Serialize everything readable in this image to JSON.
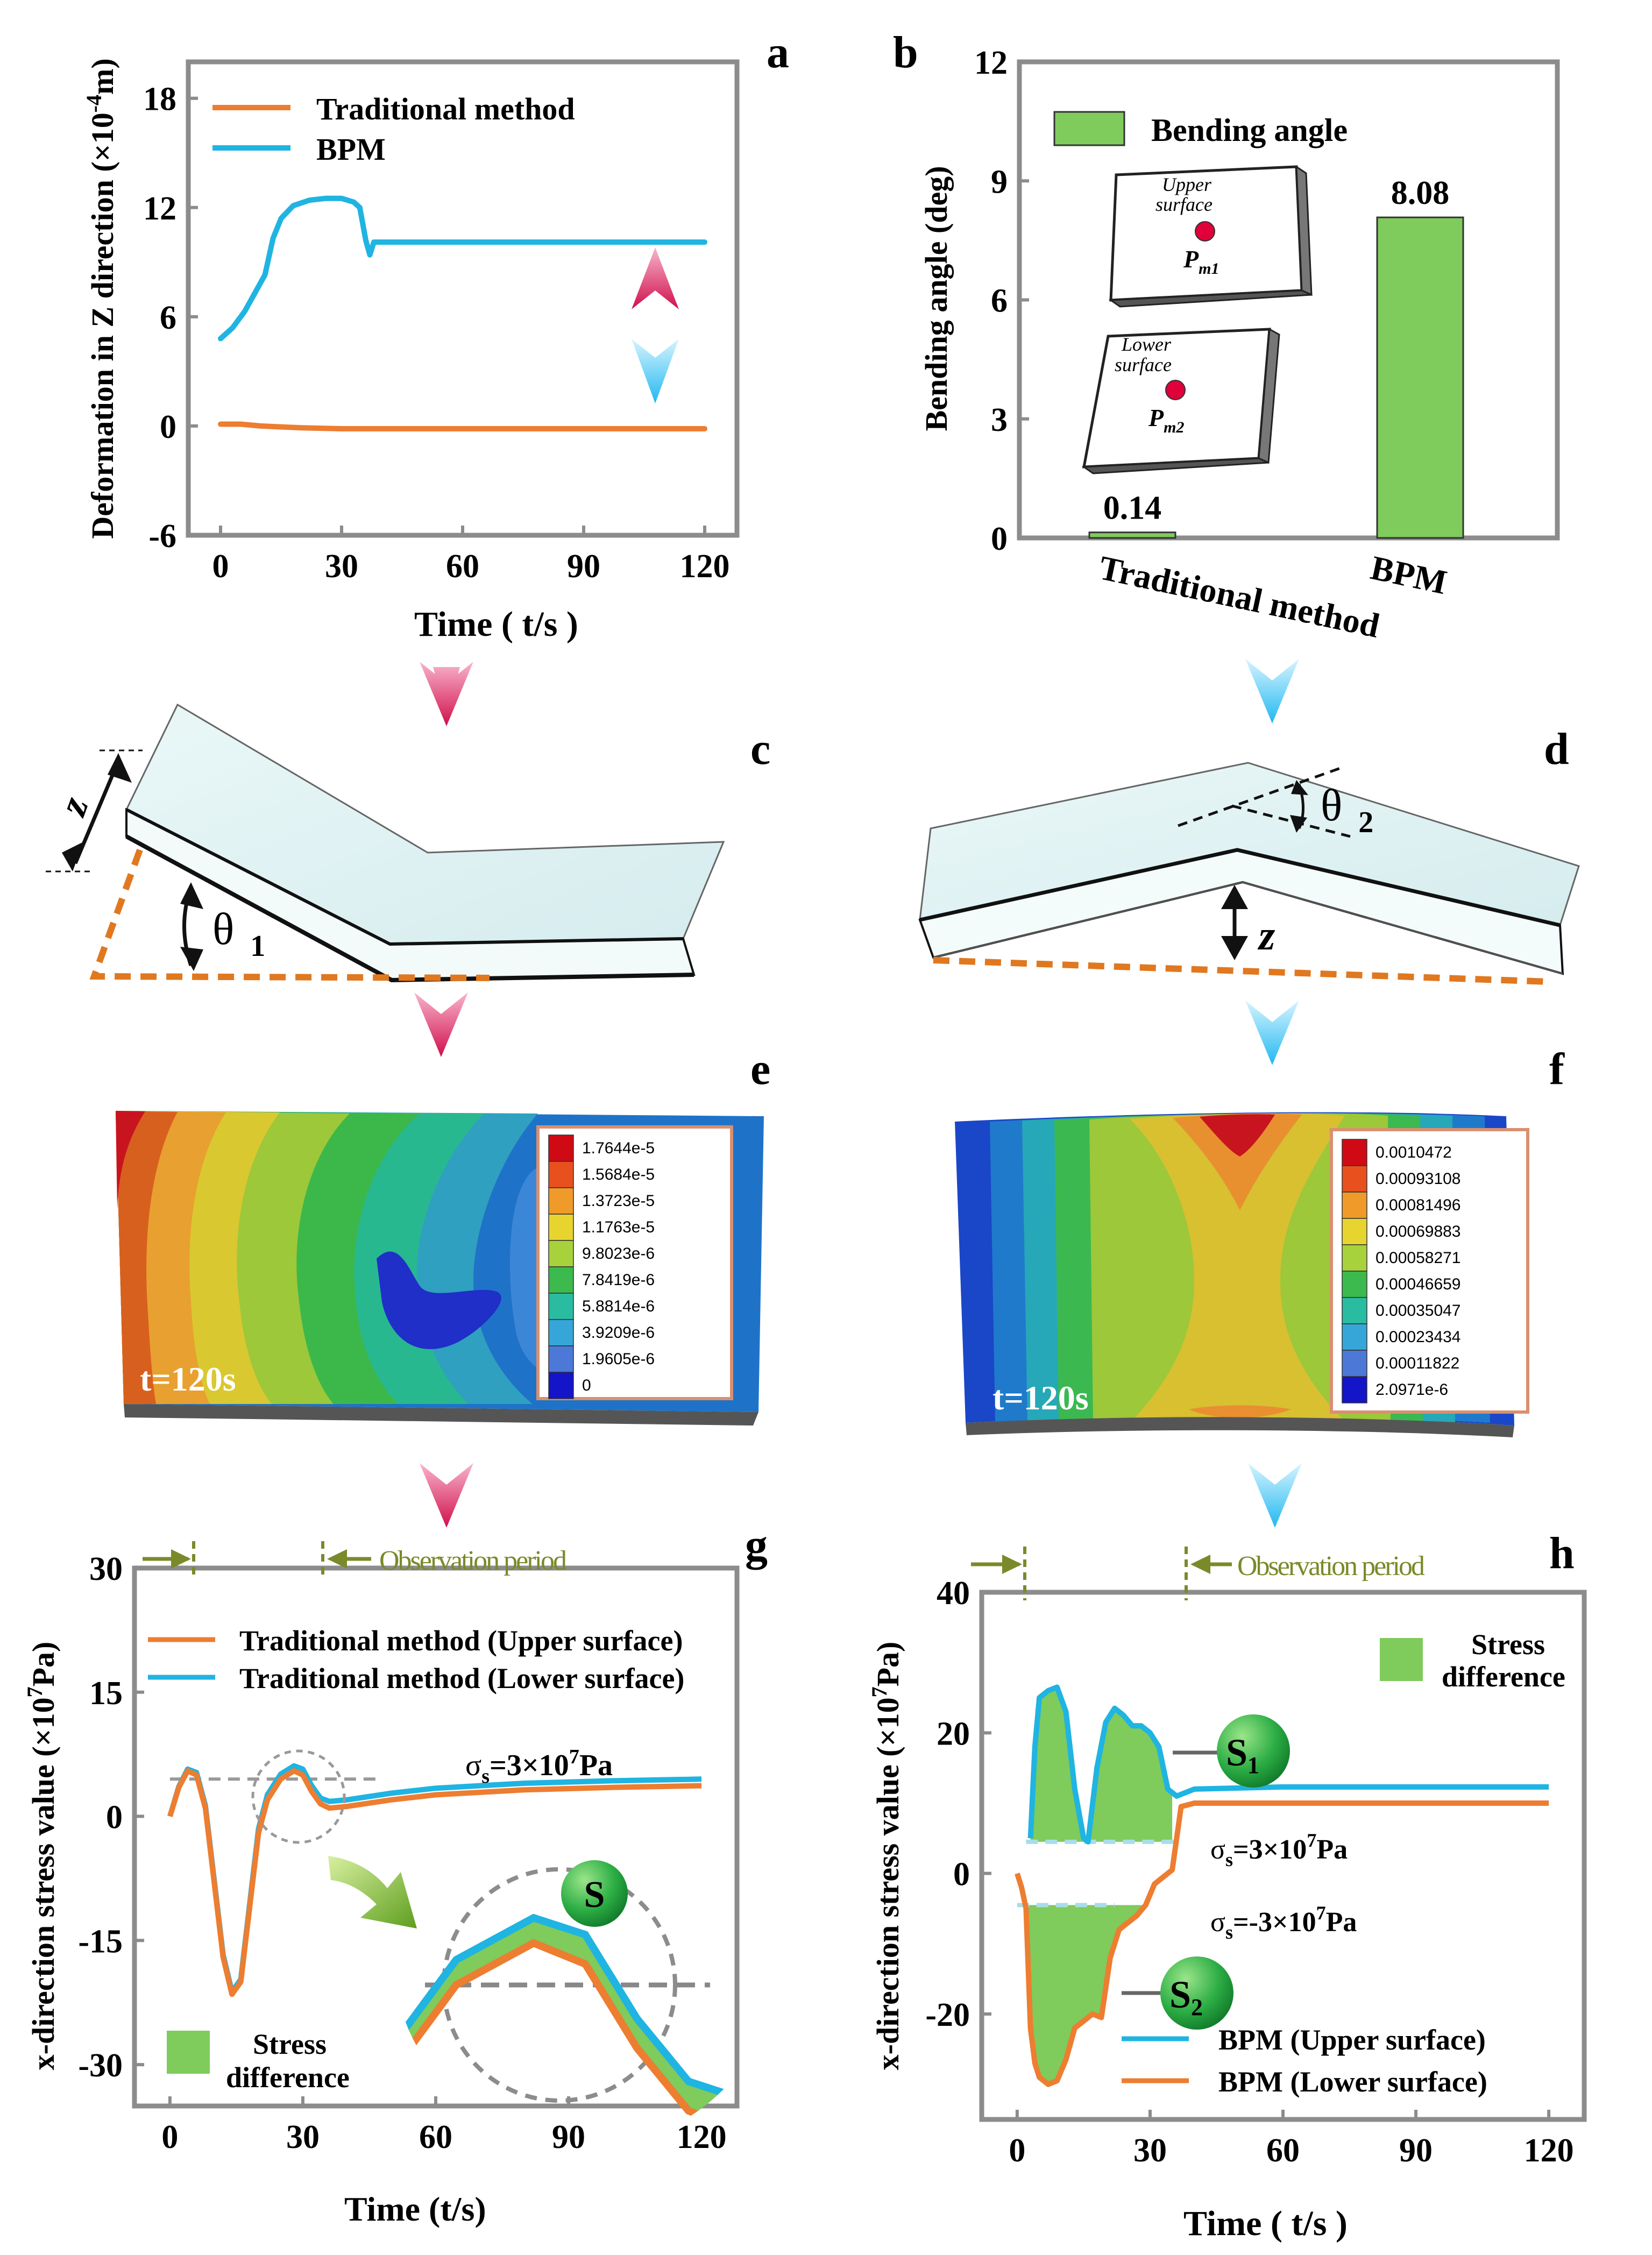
{
  "colors": {
    "orange": "#ED7D31",
    "blue": "#1FB4E2",
    "green": "#7FCB5B",
    "axis": "#8C8C8C",
    "olive": "#7A8A2A",
    "red_marker": "#E0003A",
    "pink_arrow": "#E0306A",
    "cyan_arrow": "#22B8F0"
  },
  "panels": {
    "a": {
      "letter": "a"
    },
    "b": {
      "letter": "b"
    },
    "c": {
      "letter": "c",
      "z_label": "z",
      "theta_label": "θ",
      "theta_sub": "1"
    },
    "d": {
      "letter": "d",
      "z_label": "z",
      "theta_label": "θ",
      "theta_sub": "2"
    },
    "e": {
      "letter": "e",
      "time_label": "t=120s",
      "legend": [
        "1.7644e-5",
        "1.5684e-5",
        "1.3723e-5",
        "1.1763e-5",
        "9.8023e-6",
        "7.8419e-6",
        "5.8814e-6",
        "3.9209e-6",
        "1.9605e-6",
        "0"
      ]
    },
    "f": {
      "letter": "f",
      "time_label": "t=120s",
      "legend": [
        "0.0010472",
        "0.00093108",
        "0.00081496",
        "0.00069883",
        "0.00058271",
        "0.00046659",
        "0.00035047",
        "0.00023434",
        "0.00011822",
        "2.0971e-6"
      ]
    },
    "g": {
      "letter": "g",
      "observation": "Observation period",
      "sigma_label": "σ",
      "sigma_sub": "s",
      "sigma_value": "=3×10",
      "sigma_exp": "7",
      "sigma_unit": "Pa",
      "s_badge": "S",
      "legend_stress": [
        "Stress",
        "difference"
      ]
    },
    "h": {
      "letter": "h",
      "observation": "Observation period",
      "sigma_pos_value": "=3×10",
      "sigma_neg_value": "=-3×10",
      "sigma_exp": "7",
      "sigma_unit": "Pa",
      "sigma_label": "σ",
      "sigma_sub": "s",
      "s1_badge": "S",
      "s1_sub": "1",
      "s2_badge": "S",
      "s2_sub": "2",
      "legend_stress": [
        "Stress",
        "difference"
      ]
    }
  },
  "chart_data": [
    {
      "id": "a",
      "type": "line",
      "title": "",
      "xlabel": "Time ( t/s )",
      "ylabel_main": "Deformation in Z direction (×10",
      "ylabel_exp": "-4",
      "ylabel_end": "m)",
      "xlim": [
        -8,
        128
      ],
      "ylim": [
        -6,
        20
      ],
      "xticks": [
        0,
        30,
        60,
        90,
        120
      ],
      "yticks": [
        -6,
        0,
        6,
        12,
        18
      ],
      "series": [
        {
          "name": "Traditional method",
          "color": "#ED7D31",
          "x": [
            0,
            5,
            10,
            20,
            30,
            60,
            90,
            120
          ],
          "y": [
            0.1,
            0.1,
            0.0,
            -0.1,
            -0.15,
            -0.15,
            -0.15,
            -0.15
          ]
        },
        {
          "name": "BPM",
          "color": "#1FB4E2",
          "x": [
            0,
            3,
            6,
            9,
            11,
            12,
            13,
            15,
            18,
            22,
            26,
            30,
            33,
            34.5,
            36,
            37,
            38,
            39,
            40,
            60,
            90,
            120
          ],
          "y": [
            4.8,
            5.4,
            6.3,
            7.5,
            8.3,
            9.3,
            10.3,
            11.4,
            12.1,
            12.4,
            12.5,
            12.5,
            12.3,
            12.0,
            10.2,
            9.4,
            10.1,
            10.1,
            10.1,
            10.1,
            10.1,
            10.1
          ]
        }
      ]
    },
    {
      "id": "b",
      "type": "bar",
      "ylabel": "Bending angle (deg)",
      "ylim": [
        0,
        12
      ],
      "yticks": [
        0,
        3,
        6,
        9,
        12
      ],
      "categories": [
        "Traditional method",
        "BPM"
      ],
      "values": [
        0.14,
        8.08
      ],
      "value_labels": [
        "0.14",
        "8.08"
      ],
      "legend": "Bending angle",
      "inset": {
        "upper_title1": "Upper",
        "upper_title2": "surface",
        "upper_point": "P",
        "upper_point_sub": "m1",
        "lower_title1": "Lower",
        "lower_title2": "surface",
        "lower_point": "P",
        "lower_point_sub": "m2"
      }
    },
    {
      "id": "g",
      "type": "line",
      "xlabel": "Time (t/s)",
      "ylabel_main": "x-direction stress value (×10",
      "ylabel_exp": "7",
      "ylabel_end": "Pa)",
      "xlim": [
        -8,
        128
      ],
      "ylim": [
        -35,
        30
      ],
      "xticks": [
        0,
        30,
        60,
        90,
        120
      ],
      "yticks": [
        -30,
        -15,
        0,
        15,
        30
      ],
      "series": [
        {
          "name": "Traditional method (Upper surface)",
          "color": "#ED7D31",
          "x": [
            0,
            2,
            4,
            6,
            8,
            10,
            12,
            14,
            16,
            18,
            20,
            22,
            25,
            28,
            30,
            32,
            34,
            36,
            40,
            50,
            60,
            80,
            100,
            120
          ],
          "y": [
            0,
            3.5,
            5.5,
            5.0,
            1.0,
            -8,
            -17,
            -21.5,
            -20,
            -11,
            -2,
            2,
            4.5,
            5.5,
            5.0,
            3.0,
            1.5,
            1.0,
            1.2,
            2.0,
            2.6,
            3.2,
            3.5,
            3.7
          ]
        },
        {
          "name": "Traditional method (Lower surface)",
          "color": "#1FB4E2",
          "x": [
            0,
            2,
            4,
            6,
            8,
            10,
            12,
            14,
            16,
            18,
            20,
            22,
            25,
            28,
            30,
            32,
            34,
            36,
            40,
            50,
            60,
            80,
            100,
            120
          ],
          "y": [
            0,
            3.6,
            5.7,
            5.3,
            1.3,
            -7.7,
            -16.7,
            -21.2,
            -19.7,
            -10.6,
            -1.5,
            2.6,
            5.1,
            6.1,
            5.7,
            3.7,
            2.2,
            1.8,
            2.0,
            2.8,
            3.4,
            4.0,
            4.3,
            4.5
          ]
        }
      ],
      "threshold": 4.5
    },
    {
      "id": "h",
      "type": "line",
      "xlabel": "Time ( t/s )",
      "ylabel_main": "x-direction stress value (×10",
      "ylabel_exp": "7",
      "ylabel_end": "Pa)",
      "xlim": [
        -8,
        128
      ],
      "ylim": [
        -35,
        40
      ],
      "xticks": [
        0,
        30,
        60,
        90,
        120
      ],
      "yticks": [
        -20,
        0,
        20,
        40
      ],
      "series": [
        {
          "name": "BPM (Upper surface)",
          "color": "#1FB4E2",
          "x": [
            3,
            4,
            5,
            7,
            9,
            11,
            13,
            15,
            16,
            18,
            20,
            22,
            24,
            26,
            28,
            30,
            32,
            34,
            36,
            38,
            40,
            60,
            90,
            120
          ],
          "y": [
            5,
            18,
            25,
            26,
            26.5,
            23,
            12,
            5,
            4.5,
            15,
            21.5,
            23.5,
            22.5,
            21,
            21,
            20,
            18,
            12,
            11,
            11.5,
            12,
            12.3,
            12.3,
            12.3
          ]
        },
        {
          "name": "BPM (Lower surface)",
          "color": "#ED7D31",
          "x": [
            0,
            1,
            2,
            3,
            4,
            5,
            7,
            9,
            11,
            13,
            15,
            17,
            19,
            21,
            23,
            25,
            27,
            29,
            31,
            33,
            35,
            37,
            40,
            60,
            90,
            120
          ],
          "y": [
            0,
            -2,
            -5,
            -22,
            -27,
            -29,
            -30,
            -29.5,
            -26.5,
            -22,
            -21,
            -20,
            -20.5,
            -12,
            -8,
            -7,
            -6,
            -4.5,
            -1.5,
            -0.5,
            0.5,
            9.5,
            10,
            10,
            10,
            10
          ]
        }
      ],
      "threshold_pos": 4.5,
      "threshold_neg": -4.5
    }
  ]
}
